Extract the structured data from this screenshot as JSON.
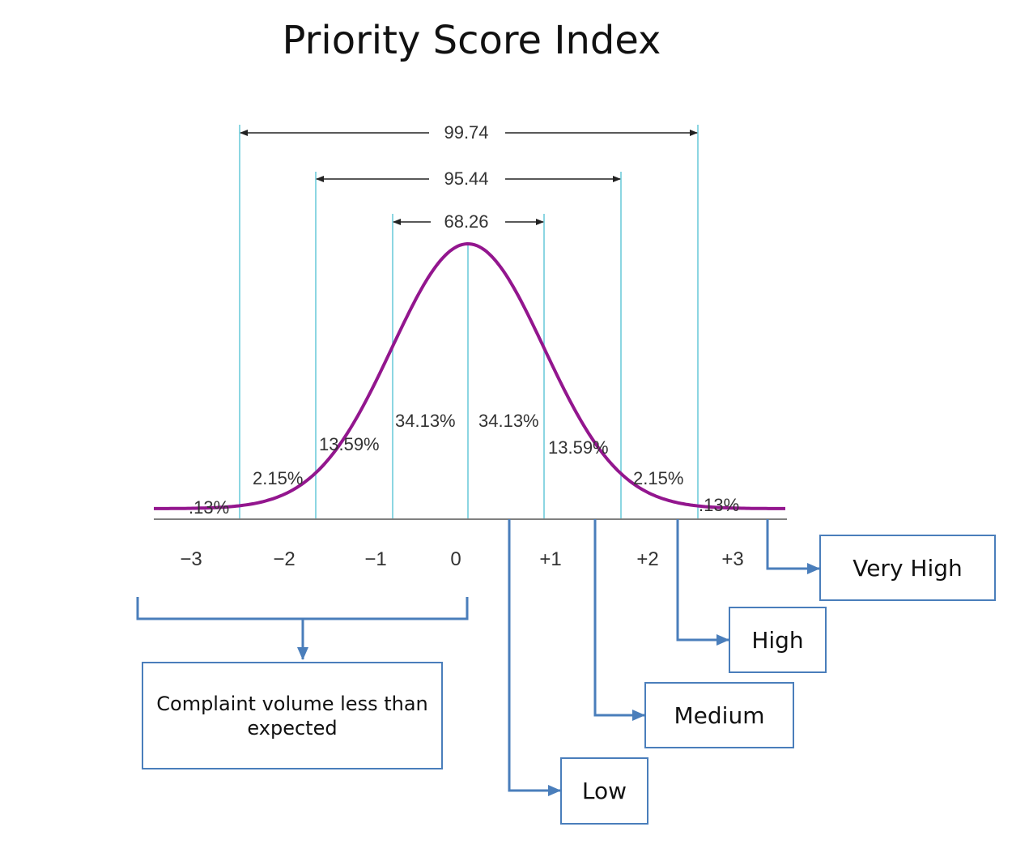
{
  "title": "Priority Score Index",
  "colors": {
    "curve": "#93168e",
    "guides": "#67c9d8",
    "arrows": "#4a7ebb",
    "axis": "#808080"
  },
  "ranges": [
    {
      "label": "99.74"
    },
    {
      "label": "95.44"
    },
    {
      "label": "68.26"
    }
  ],
  "percentages": [
    ".13%",
    "2.15%",
    "13.59%",
    "34.13%",
    "34.13%",
    "13.59%",
    "2.15%",
    ".13%"
  ],
  "ticks": [
    "−3",
    "−2",
    "−1",
    "0",
    "+1",
    "+2",
    "+3"
  ],
  "categories": {
    "below_expected": "Complaint volume less than expected",
    "low": "Low",
    "medium": "Medium",
    "high": "High",
    "very_high": "Very High"
  }
}
